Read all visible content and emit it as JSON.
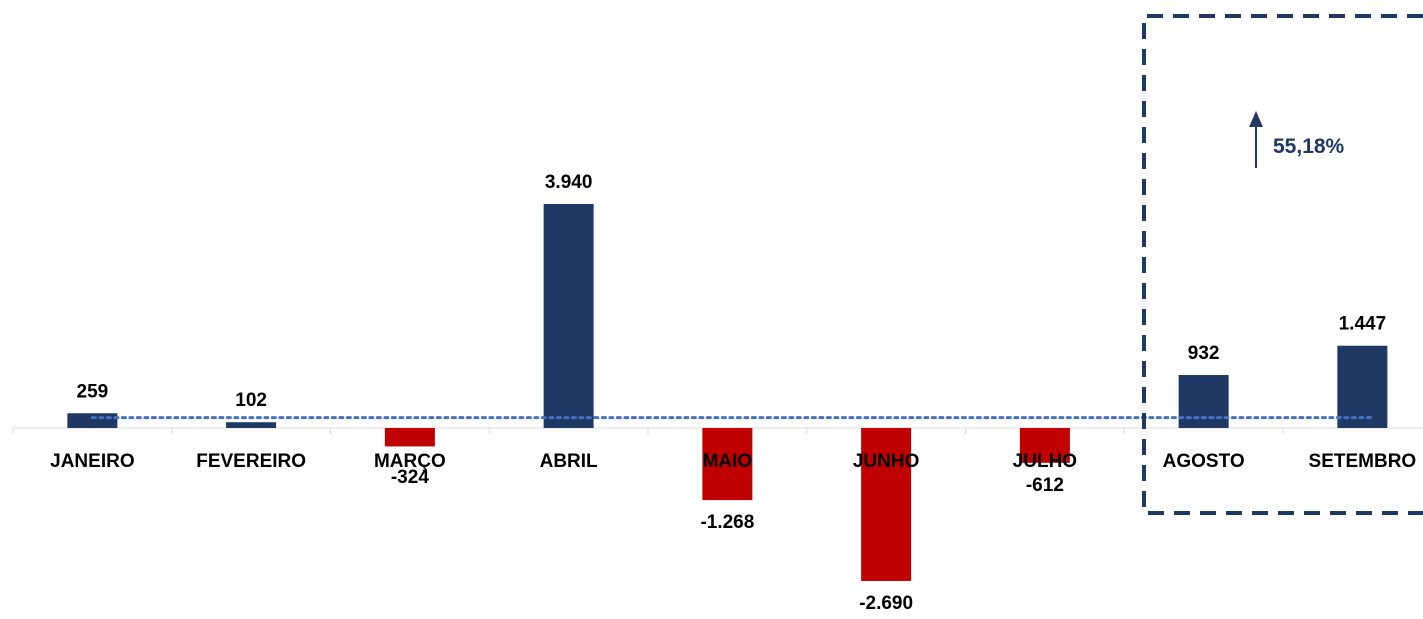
{
  "chart_data": {
    "type": "bar",
    "categories": [
      "JANEIRO",
      "FEVEREIRO",
      "MARÇO",
      "ABRIL",
      "MAIO",
      "JUNHO",
      "JULHO",
      "AGOSTO",
      "SETEMBRO"
    ],
    "values": [
      259,
      102,
      -324,
      3940,
      -1268,
      -2690,
      -612,
      932,
      1447
    ],
    "value_labels": [
      "259",
      "102",
      "-324",
      "3.940",
      "-1.268",
      "-2.690",
      "-612",
      "932",
      "1.447"
    ],
    "title": "",
    "xlabel": "",
    "ylabel": "",
    "ylim": [
      -3000,
      4600
    ],
    "grid": false,
    "trendline": {
      "style": "dotted",
      "color": "#4472c4",
      "value": 200
    },
    "highlight": {
      "categories": [
        "AGOSTO",
        "SETEMBRO"
      ],
      "style": "dashed-box"
    },
    "annotation": {
      "text": "55,18%",
      "direction": "up"
    },
    "colors": {
      "positive": "#1f3864",
      "negative": "#c00000",
      "annotation": "#1f3864"
    }
  }
}
